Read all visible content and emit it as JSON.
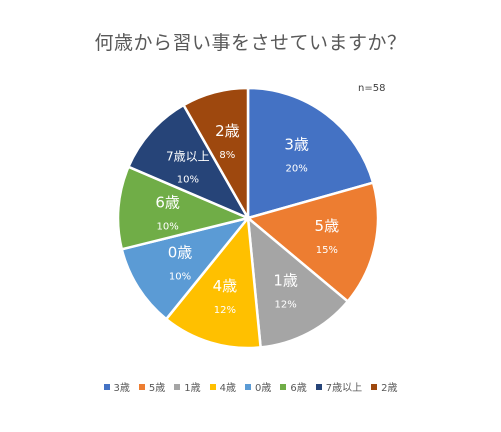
{
  "chart_data": {
    "type": "pie",
    "title": "何歳から習い事をさせていますか？",
    "annotation": "n=58",
    "legend_position": "bottom",
    "start_angle_deg": 0,
    "direction": "clockwise",
    "slices": [
      {
        "label": "3歳",
        "value": 20,
        "value_label": "20%",
        "color": "#4472C4"
      },
      {
        "label": "5歳",
        "value": 15,
        "value_label": "15%",
        "color": "#ED7D31"
      },
      {
        "label": "1歳",
        "value": 12,
        "value_label": "12%",
        "color": "#A5A5A5"
      },
      {
        "label": "4歳",
        "value": 12,
        "value_label": "12%",
        "color": "#FFC000"
      },
      {
        "label": "0歳",
        "value": 10,
        "value_label": "10%",
        "color": "#5B9BD5"
      },
      {
        "label": "6歳",
        "value": 10,
        "value_label": "10%",
        "color": "#70AD47"
      },
      {
        "label": "7歳以上",
        "value": 10,
        "value_label": "10%",
        "color": "#264478"
      },
      {
        "label": "2歳",
        "value": 8,
        "value_label": "8%",
        "color": "#9E480E"
      }
    ]
  }
}
